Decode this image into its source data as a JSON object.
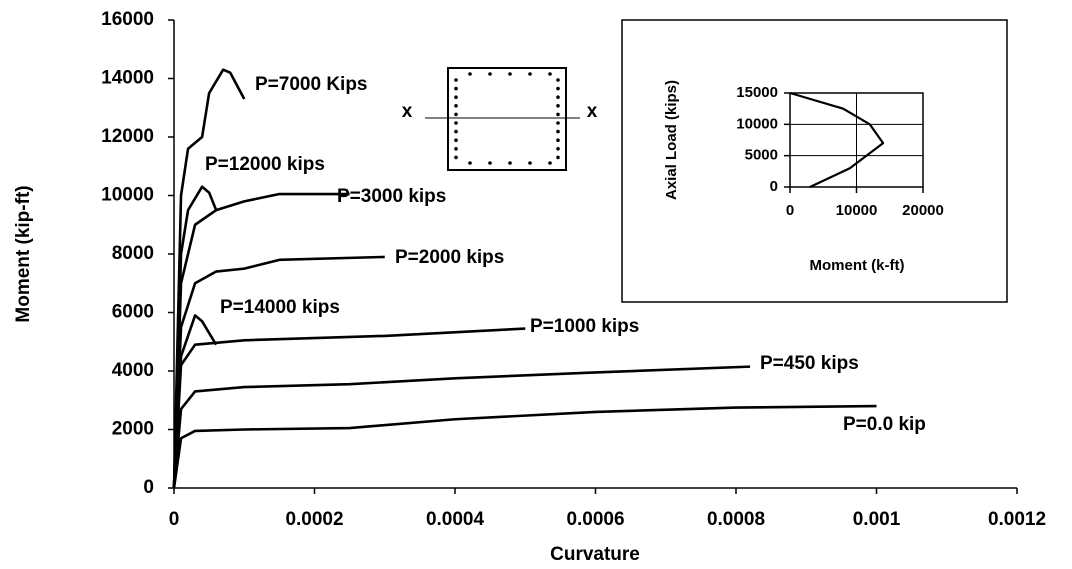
{
  "chart_data": [
    {
      "type": "line",
      "xlabel": "Curvature",
      "ylabel": "Moment (kip-ft)",
      "xlim": [
        0,
        0.0012
      ],
      "ylim": [
        0,
        16000
      ],
      "xticks": [
        0,
        0.0002,
        0.0004,
        0.0006,
        0.0008,
        0.001,
        0.0012
      ],
      "yticks": [
        0,
        2000,
        4000,
        6000,
        8000,
        10000,
        12000,
        14000,
        16000
      ],
      "grid": false,
      "section_labels": [
        "x",
        "x"
      ],
      "series": [
        {
          "name": "P=7000 Kips",
          "color": "#000000",
          "x": [
            0,
            1e-05,
            2e-05,
            4e-05,
            5e-05,
            7e-05,
            8e-05,
            0.0001
          ],
          "values": [
            0,
            10000,
            11600,
            12000,
            13500,
            14300,
            14200,
            13300
          ]
        },
        {
          "name": "P=12000 kips",
          "color": "#000000",
          "x": [
            0,
            1e-05,
            2e-05,
            4e-05,
            5e-05,
            6e-05
          ],
          "values": [
            0,
            8000,
            9500,
            10300,
            10100,
            9500
          ]
        },
        {
          "name": "P=3000 kips",
          "color": "#000000",
          "x": [
            0,
            1e-05,
            3e-05,
            6e-05,
            0.0001,
            0.00015,
            0.00025
          ],
          "values": [
            0,
            7000,
            9000,
            9500,
            9800,
            10050,
            10050
          ]
        },
        {
          "name": "P=2000 kips",
          "color": "#000000",
          "x": [
            0,
            1e-05,
            3e-05,
            6e-05,
            0.0001,
            0.00015,
            0.0003
          ],
          "values": [
            0,
            5500,
            7000,
            7400,
            7500,
            7800,
            7900
          ]
        },
        {
          "name": "P=14000 kips",
          "color": "#000000",
          "x": [
            0,
            1e-05,
            3e-05,
            4e-05,
            6e-05
          ],
          "values": [
            0,
            4500,
            5900,
            5700,
            4900
          ]
        },
        {
          "name": "P=1000 kips",
          "color": "#000000",
          "x": [
            0,
            1e-05,
            3e-05,
            0.0001,
            0.0003,
            0.0005
          ],
          "values": [
            0,
            4200,
            4900,
            5050,
            5200,
            5450
          ]
        },
        {
          "name": "P=450 kips",
          "color": "#000000",
          "x": [
            0,
            1e-05,
            3e-05,
            0.0001,
            0.00025,
            0.0004,
            0.0006,
            0.00082
          ],
          "values": [
            0,
            2700,
            3300,
            3450,
            3550,
            3750,
            3950,
            4150
          ]
        },
        {
          "name": "P=0.0 kip",
          "color": "#000000",
          "x": [
            0,
            1e-05,
            3e-05,
            0.0001,
            0.00025,
            0.0004,
            0.0006,
            0.0008,
            0.001
          ],
          "values": [
            0,
            1700,
            1950,
            2000,
            2050,
            2350,
            2600,
            2750,
            2800
          ]
        }
      ]
    },
    {
      "type": "line",
      "xlabel": "Moment (k-ft)",
      "ylabel": "Axial Load (kips)",
      "xlim": [
        0,
        20000
      ],
      "ylim": [
        0,
        15000
      ],
      "xticks": [
        0,
        10000,
        20000
      ],
      "yticks": [
        0,
        5000,
        10000,
        15000
      ],
      "grid": true,
      "series": [
        {
          "color": "#000000",
          "x": [
            3000,
            9000,
            14000,
            12000,
            8000,
            0
          ],
          "values": [
            0,
            3000,
            7000,
            10000,
            12500,
            15000
          ]
        }
      ]
    }
  ]
}
